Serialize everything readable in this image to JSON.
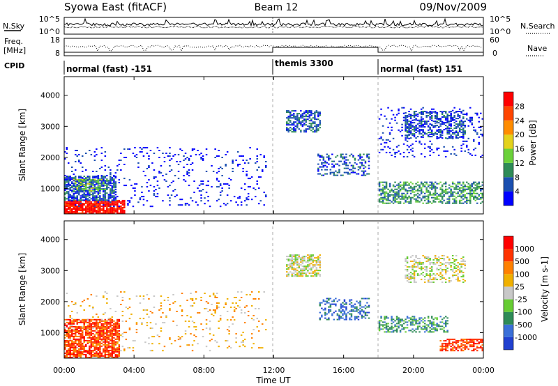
{
  "header": {
    "station": "Syowa East (fitACF)",
    "beam": "Beam 12",
    "date": "09/Nov/2009"
  },
  "summary_panels": {
    "nsky": {
      "label": "N.Sky",
      "ticks": [
        "10^5",
        "10^0"
      ]
    },
    "nsearch": {
      "label": "N.Search",
      "ticks": [
        "10^5",
        "10^0"
      ]
    },
    "freq": {
      "label_line1": "Freq.",
      "label_line2": "[MHz]",
      "ticks": [
        "18",
        "8"
      ]
    },
    "nave": {
      "label": "Nave",
      "ticks": [
        "60",
        "0"
      ]
    },
    "cpid": {
      "label": "CPID",
      "segments": [
        {
          "name": "normal (fast) -151",
          "start_hour": 0,
          "end_hour": 12
        },
        {
          "name": "themis 3300",
          "start_hour": 12,
          "end_hour": 18
        },
        {
          "name": "normal (fast) 151",
          "start_hour": 18,
          "end_hour": 24
        }
      ]
    }
  },
  "chart_data": [
    {
      "type": "heatmap",
      "title": "Power",
      "ylabel": "Slant Range [km]",
      "ylim": [
        180,
        4600
      ],
      "xlim_hours": [
        0,
        24
      ],
      "yticks": [
        "1000",
        "2000",
        "3000",
        "4000"
      ],
      "colorbar": {
        "label": "Power [dB]",
        "ticks": [
          "4",
          "8",
          "12",
          "16",
          "20",
          "24",
          "28"
        ],
        "colors": [
          "#0000ff",
          "#1a4fb0",
          "#2e8b57",
          "#6bd13a",
          "#e3d21c",
          "#ff8c00",
          "#ff4500",
          "#ff0000"
        ]
      },
      "regions": [
        {
          "t0": 0.0,
          "t1": 3.5,
          "r0": 180,
          "r1": 600,
          "level": 7,
          "density": 0.85
        },
        {
          "t0": 0.0,
          "t1": 3.0,
          "r0": 600,
          "r1": 1400,
          "level": 1,
          "density": 0.7
        },
        {
          "t0": 0.5,
          "t1": 2.5,
          "r0": 900,
          "r1": 1300,
          "level": 3,
          "density": 0.5
        },
        {
          "t0": 0.0,
          "t1": 11.5,
          "r0": 400,
          "r1": 2300,
          "level": 0,
          "density": 0.08
        },
        {
          "t0": 12.7,
          "t1": 14.6,
          "r0": 2800,
          "r1": 3500,
          "level": 1,
          "density": 0.6
        },
        {
          "t0": 14.5,
          "t1": 17.5,
          "r0": 1400,
          "r1": 2100,
          "level": 1,
          "density": 0.35
        },
        {
          "t0": 18.0,
          "t1": 24.0,
          "r0": 500,
          "r1": 1200,
          "level": 2,
          "density": 0.55
        },
        {
          "t0": 19.5,
          "t1": 23.0,
          "r0": 2600,
          "r1": 3500,
          "level": 1,
          "density": 0.45
        },
        {
          "t0": 18.0,
          "t1": 24.0,
          "r0": 2000,
          "r1": 3600,
          "level": 0,
          "density": 0.12
        }
      ]
    },
    {
      "type": "heatmap",
      "title": "Velocity",
      "ylabel": "Slant Range [km]",
      "xlabel": "Time UT",
      "ylim": [
        180,
        4600
      ],
      "xlim_hours": [
        0,
        24
      ],
      "yticks": [
        "1000",
        "2000",
        "3000",
        "4000"
      ],
      "xticks": [
        "00:00",
        "04:00",
        "08:00",
        "12:00",
        "16:00",
        "20:00",
        "00:00"
      ],
      "colorbar": {
        "label": "Velocity [m s-1]",
        "ticks": [
          "1000",
          "500",
          "100",
          "25",
          "-25",
          "-100",
          "-500",
          "-1000"
        ],
        "colors": [
          "#2040d0",
          "#3a6fd8",
          "#2e8b57",
          "#66cc33",
          "#c8c8c8",
          "#f0b000",
          "#ff8000",
          "#ff3300",
          "#ff0000"
        ]
      },
      "regions": [
        {
          "t0": 0.0,
          "t1": 3.2,
          "r0": 180,
          "r1": 1400,
          "level": 7,
          "density": 0.75
        },
        {
          "t0": 0.0,
          "t1": 11.5,
          "r0": 400,
          "r1": 2300,
          "level": 5,
          "density": 0.07
        },
        {
          "t0": 12.7,
          "t1": 14.6,
          "r0": 2800,
          "r1": 3500,
          "level": 4,
          "density": 0.6
        },
        {
          "t0": 14.6,
          "t1": 17.5,
          "r0": 1400,
          "r1": 2100,
          "level": 1,
          "density": 0.35
        },
        {
          "t0": 18.0,
          "t1": 22.0,
          "r0": 1000,
          "r1": 1500,
          "level": 2,
          "density": 0.45
        },
        {
          "t0": 21.5,
          "t1": 24.0,
          "r0": 400,
          "r1": 800,
          "level": 7,
          "density": 0.55
        },
        {
          "t0": 19.5,
          "t1": 23.0,
          "r0": 2600,
          "r1": 3500,
          "level": 4,
          "density": 0.4
        }
      ]
    }
  ]
}
